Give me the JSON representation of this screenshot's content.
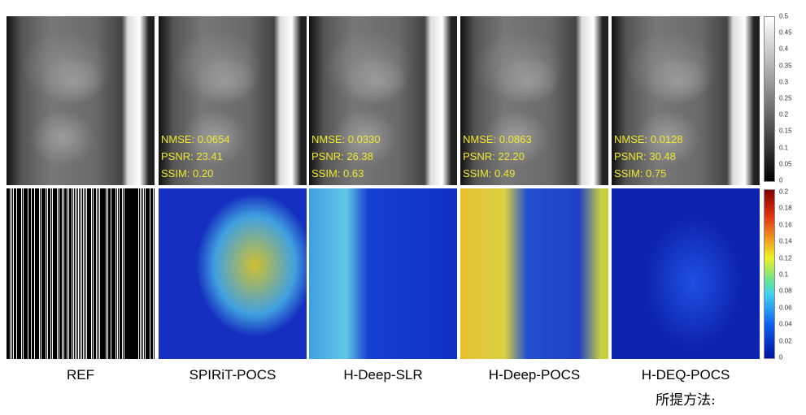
{
  "columns": [
    {
      "label": "REF"
    },
    {
      "label": "SPIRiT-POCS",
      "nmse": "NMSE: 0.0654",
      "psnr": "PSNR: 23.41",
      "ssim": "SSIM: 0.20"
    },
    {
      "label": "H-Deep-SLR",
      "nmse": "NMSE: 0.0330",
      "psnr": "PSNR: 26.38",
      "ssim": "SSIM: 0.63"
    },
    {
      "label": "H-Deep-POCS",
      "nmse": "NMSE: 0.0863",
      "psnr": "PSNR: 22.20",
      "ssim": "SSIM: 0.49"
    },
    {
      "label": "H-DEQ-POCS",
      "nmse": "NMSE: 0.0128",
      "psnr": "PSNR: 30.48",
      "ssim": "SSIM: 0.75"
    }
  ],
  "proposed_label": "所提方法:",
  "colorbar_gray": {
    "ticks": [
      "0.5",
      "0.45",
      "0.4",
      "0.35",
      "0.3",
      "0.25",
      "0.2",
      "0.15",
      "0.1",
      "0.05",
      "0"
    ]
  },
  "colorbar_jet": {
    "ticks": [
      "0.2",
      "0.18",
      "0.16",
      "0.14",
      "0.12",
      "0.1",
      "0.08",
      "0.06",
      "0.04",
      "0.02",
      "0"
    ]
  }
}
